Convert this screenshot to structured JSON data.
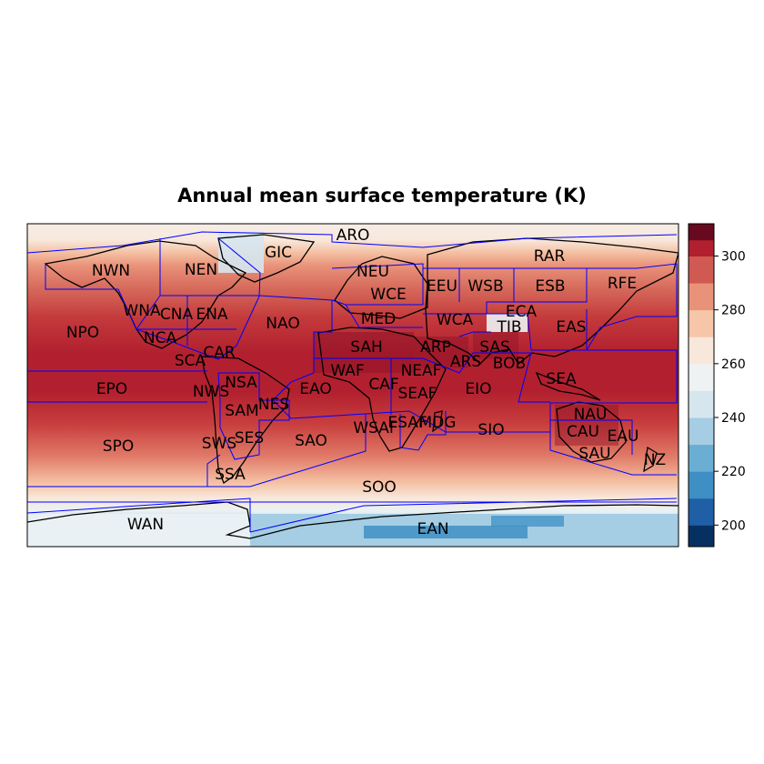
{
  "title": "Annual mean surface temperature (K)",
  "colorbar": {
    "ticks": [
      200,
      220,
      240,
      260,
      280,
      300
    ],
    "range": [
      192,
      312
    ],
    "levels": [
      {
        "from": 192,
        "to": 200,
        "color": "#053061"
      },
      {
        "from": 200,
        "to": 210,
        "color": "#1f5fa6"
      },
      {
        "from": 210,
        "to": 220,
        "color": "#3e8fc4"
      },
      {
        "from": 220,
        "to": 230,
        "color": "#6aafd3"
      },
      {
        "from": 230,
        "to": 240,
        "color": "#a5cde3"
      },
      {
        "from": 240,
        "to": 250,
        "color": "#d5e6ef"
      },
      {
        "from": 250,
        "to": 260,
        "color": "#eef2f3"
      },
      {
        "from": 260,
        "to": 270,
        "color": "#f8e8dc"
      },
      {
        "from": 270,
        "to": 280,
        "color": "#f7c6a8"
      },
      {
        "from": 280,
        "to": 290,
        "color": "#e9927a"
      },
      {
        "from": 290,
        "to": 300,
        "color": "#d05a52"
      },
      {
        "from": 300,
        "to": 306,
        "color": "#b2202f"
      },
      {
        "from": 306,
        "to": 312,
        "color": "#670a1f"
      }
    ]
  },
  "region_outline_color": "#0000ff",
  "regions": [
    "ARO",
    "GIC",
    "NWN",
    "NEN",
    "RAR",
    "NEU",
    "WCE",
    "EEU",
    "WSB",
    "ESB",
    "RFE",
    "WNA",
    "CNA",
    "ENA",
    "NAO",
    "MED",
    "WCA",
    "ECA",
    "TIB",
    "EAS",
    "NPO",
    "NCA",
    "CAR",
    "SAH",
    "ARP",
    "SAS",
    "SCA",
    "NSA",
    "WAF",
    "NEAF",
    "ARS",
    "BOB",
    "SEA",
    "EPO",
    "NWS",
    "EAO",
    "CAF",
    "SEAF",
    "EIO",
    "NES",
    "SAM",
    "WSAF",
    "ESAF",
    "MDG",
    "SIO",
    "NAU",
    "CAU",
    "EAU",
    "SPO",
    "SWS",
    "SES",
    "SAO",
    "SAU",
    "NZ",
    "SSA",
    "SOO",
    "WAN",
    "EAN"
  ]
}
